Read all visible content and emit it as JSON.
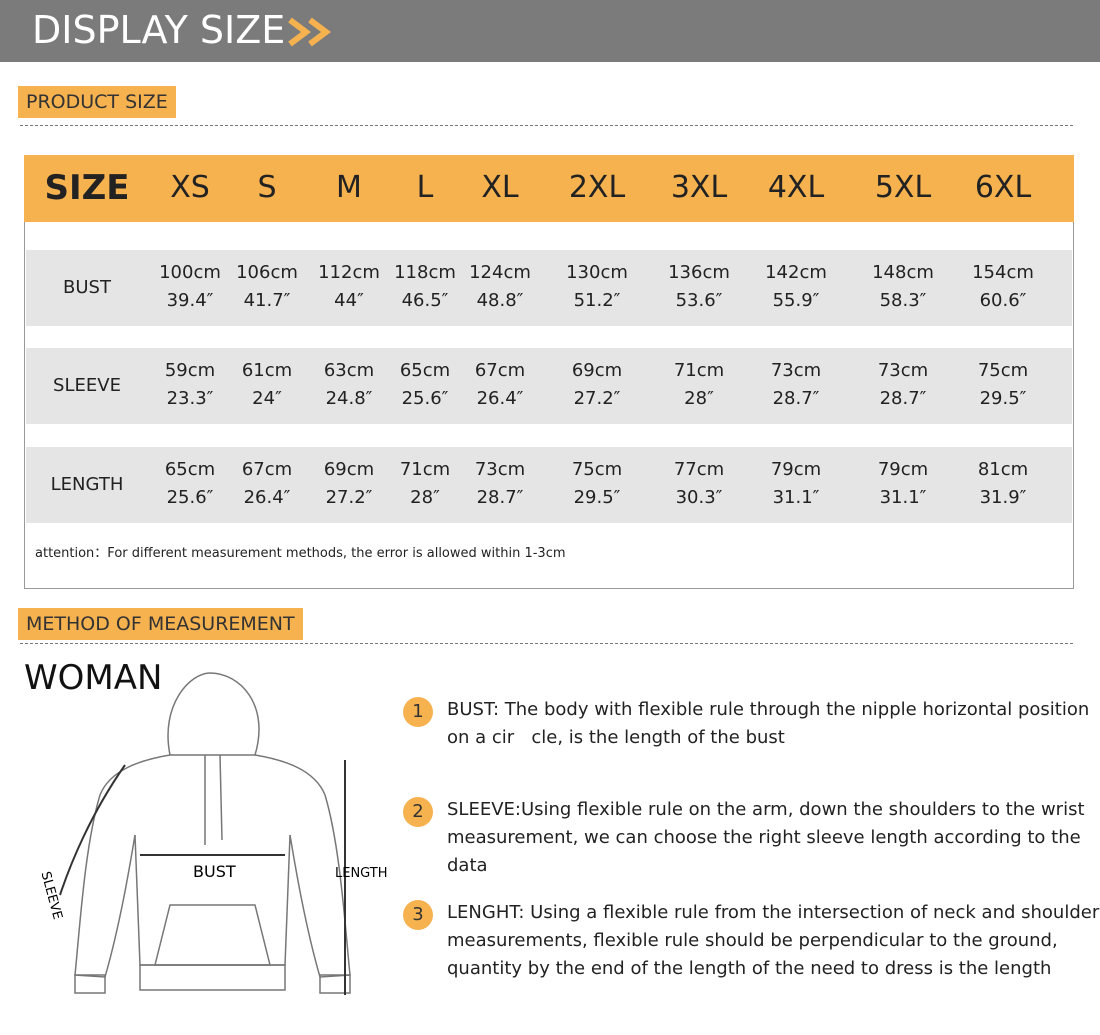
{
  "header": {
    "title": "DISPLAY SIZE"
  },
  "product_size": {
    "label": "PRODUCT SIZE",
    "table": {
      "header": [
        "SIZE",
        "XS",
        "S",
        "M",
        "L",
        "XL",
        "2XL",
        "3XL",
        "4XL",
        "5XL",
        "6XL"
      ],
      "rows": [
        {
          "label": "BUST",
          "cells": [
            [
              "100cm",
              "39.4″"
            ],
            [
              "106cm",
              "41.7″"
            ],
            [
              "112cm",
              "44″"
            ],
            [
              "118cm",
              "46.5″"
            ],
            [
              "124cm",
              "48.8″"
            ],
            [
              "130cm",
              "51.2″"
            ],
            [
              "136cm",
              "53.6″"
            ],
            [
              "142cm",
              "55.9″"
            ],
            [
              "148cm",
              "58.3″"
            ],
            [
              "154cm",
              "60.6″"
            ]
          ]
        },
        {
          "label": "SLEEVE",
          "cells": [
            [
              "59cm",
              "23.3″"
            ],
            [
              "61cm",
              "24″"
            ],
            [
              "63cm",
              "24.8″"
            ],
            [
              "65cm",
              "25.6″"
            ],
            [
              "67cm",
              "26.4″"
            ],
            [
              "69cm",
              "27.2″"
            ],
            [
              "71cm",
              "28″"
            ],
            [
              "73cm",
              "28.7″"
            ],
            [
              "73cm",
              "28.7″"
            ],
            [
              "75cm",
              "29.5″"
            ]
          ]
        },
        {
          "label": "LENGTH",
          "cells": [
            [
              "65cm",
              "25.6″"
            ],
            [
              "67cm",
              "26.4″"
            ],
            [
              "69cm",
              "27.2″"
            ],
            [
              "71cm",
              "28″"
            ],
            [
              "73cm",
              "28.7″"
            ],
            [
              "75cm",
              "29.5″"
            ],
            [
              "77cm",
              "30.3″"
            ],
            [
              "79cm",
              "31.1″"
            ],
            [
              "79cm",
              "31.1″"
            ],
            [
              "81cm",
              "31.9″"
            ]
          ]
        }
      ]
    },
    "note": "attention：For different measurement methods, the error is allowed within 1-3cm"
  },
  "method": {
    "label": "METHOD OF MEASUREMENT",
    "figure": {
      "title": "WOMAN",
      "labels": {
        "bust": "BUST",
        "length": "LENGTH",
        "sleeve": "SLEEVE"
      }
    },
    "steps": [
      {
        "number": "1",
        "lines": [
          "BUST: The body with flexible rule through the nipple horizontal position",
          "on a cir   cle, is the length of the bust"
        ]
      },
      {
        "number": "2",
        "lines": [
          "SLEEVE:Using flexible rule on the arm, down the shoulders to the wrist",
          "measurement, we can choose the right sleeve length according to the",
          "data"
        ]
      },
      {
        "number": "3",
        "lines": [
          "LENGHT: Using a flexible rule from the intersection of neck and shoulder",
          "measurements, flexible rule should be perpendicular to the ground,",
          "quantity by the end of the length of the need to dress is the length"
        ]
      }
    ]
  }
}
